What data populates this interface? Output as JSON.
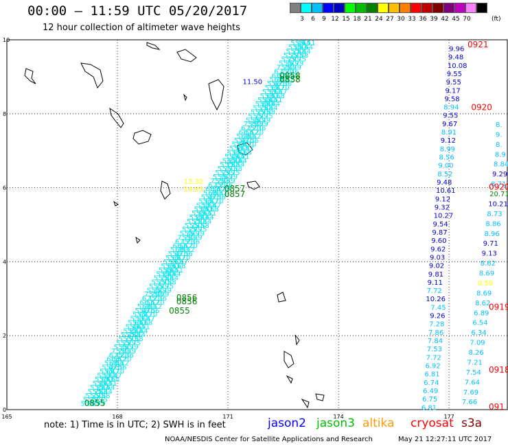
{
  "header": {
    "title": "00:00 – 11:59 UTC 05/20/2017",
    "subtitle": "12 hour collection of altimeter wave heights"
  },
  "scale": {
    "colors": [
      "#808080",
      "#00ffff",
      "#00bfff",
      "#0000ff",
      "#0000bf",
      "#00ff00",
      "#00bf00",
      "#008000",
      "#ffff00",
      "#ffbf00",
      "#ff8000",
      "#ff0000",
      "#bf0000",
      "#800000",
      "#800080",
      "#bf00bf",
      "#ff80ff",
      "#000000"
    ],
    "labels": [
      "3",
      "6",
      "9",
      "12",
      "15",
      "18",
      "21",
      "24",
      "27",
      "30",
      "33",
      "36",
      "39",
      "42",
      "45",
      "70"
    ],
    "unit": "(ft)"
  },
  "axes": {
    "x_ticks": [
      "165",
      "168",
      "171",
      "174",
      "177"
    ],
    "y_ticks": [
      "0",
      "2",
      "4",
      "6",
      "8",
      "10"
    ]
  },
  "jason3_track": {
    "color": "#00e5ee",
    "values": [
      "5.36",
      "5.79",
      "5.79",
      "5.75",
      "5.88",
      "5.44",
      "5.64",
      "5.51",
      "5.68",
      "5.47",
      "5.70",
      "6.56",
      "6.12",
      "7.20"
    ],
    "time_labels": [
      {
        "text": "0855",
        "lat": 0.1,
        "lon": 167.1,
        "color": "#007f00"
      },
      {
        "text": "0855",
        "lat": 2.6,
        "lon": 169.4,
        "color": "#007f00"
      },
      {
        "text": "0856",
        "lat": 2.85,
        "lon": 169.6,
        "color": "#007f00"
      },
      {
        "text": "0856",
        "lat": 2.95,
        "lon": 169.6,
        "color": "#007f00"
      },
      {
        "text": "0857",
        "lat": 5.75,
        "lon": 170.9,
        "color": "#007f00"
      },
      {
        "text": "0857",
        "lat": 5.9,
        "lon": 170.9,
        "color": "#007f00"
      },
      {
        "text": "0858",
        "lat": 8.85,
        "lon": 172.4,
        "color": "#007f00"
      },
      {
        "text": "0858",
        "lat": 8.95,
        "lon": 172.4,
        "color": "#007f00"
      }
    ],
    "extra_labels": [
      {
        "text": "14.93",
        "lat": 5.9,
        "lon": 169.8,
        "color": "#ffff00"
      },
      {
        "text": "13.32",
        "lat": 6.1,
        "lon": 169.8,
        "color": "#ffff00"
      },
      {
        "text": "11.50",
        "lat": 8.8,
        "lon": 171.4,
        "color": "#0000cc"
      }
    ]
  },
  "east_track1": {
    "values_top": [
      "9.96",
      "9.48",
      "10.08",
      "9.55",
      "9.55",
      "9.17",
      "9.58",
      "8.94",
      "9.55",
      "9.67",
      "8.91",
      "9.12",
      "8.99",
      "8.56",
      "9.00",
      "8.52",
      "9.48",
      "10.61",
      "9.12",
      "9.32",
      "10.27",
      "9.54",
      "9.87",
      "9.60",
      "9.62",
      "9.03",
      "9.02",
      "9.81",
      "9.11",
      "7.72",
      "10.26",
      "7.45",
      "9.26",
      "7.28",
      "7.86",
      "7.84",
      "7.53",
      "7.72",
      "6.92",
      "6.81",
      "6.74",
      "6.49",
      "6.75",
      "6.81"
    ],
    "colors_top": [
      "#0000cc",
      "#0000cc",
      "#0000cc",
      "#0000cc",
      "#0000cc",
      "#0000cc",
      "#0000cc",
      "#00bfff",
      "#0000cc",
      "#0000cc",
      "#00bfff",
      "#0000cc",
      "#00bfff",
      "#00bfff",
      "#00bfff",
      "#00bfff",
      "#0000cc",
      "#0000cc",
      "#0000cc",
      "#0000cc",
      "#0000cc",
      "#0000cc",
      "#0000cc",
      "#0000cc",
      "#0000cc",
      "#0000cc",
      "#0000cc",
      "#0000cc",
      "#0000cc",
      "#00bfff",
      "#0000cc",
      "#00bfff",
      "#0000cc",
      "#00bfff",
      "#00bfff",
      "#00bfff",
      "#00bfff",
      "#00bfff",
      "#00bfff",
      "#00bfff",
      "#00bfff",
      "#00bfff",
      "#00bfff",
      "#00bfff"
    ]
  },
  "east_track2": {
    "values": [
      "8.",
      "9.",
      "8.",
      "8.9",
      "8.84",
      "9.29",
      "8.71",
      "20.71",
      "10.21",
      "8.73",
      "8.86",
      "8.96",
      "9.71",
      "9.13",
      "8.62",
      "8.69",
      "8.59",
      "8.69",
      "8.62",
      "6.89",
      "6.54",
      "6.34",
      "7.09",
      "8.26",
      "7.21",
      "7.54",
      "7.64",
      "7.69",
      "7.66"
    ],
    "colors": [
      "#00bfff",
      "#00bfff",
      "#00bfff",
      "#00bfff",
      "#00bfff",
      "#0000cc",
      "#00bfff",
      "#007f00",
      "#0000cc",
      "#00bfff",
      "#00bfff",
      "#00bfff",
      "#0000cc",
      "#0000cc",
      "#00bfff",
      "#00bfff",
      "#ffff00",
      "#00bfff",
      "#00bfff",
      "#00bfff",
      "#00bfff",
      "#00bfff",
      "#00bfff",
      "#00bfff",
      "#00bfff",
      "#00bfff",
      "#00bfff",
      "#00bfff",
      "#00bfff"
    ]
  },
  "red_labels": [
    {
      "text": "0921",
      "lat": 9.8,
      "lon": 177.5
    },
    {
      "text": "0920",
      "lat": 8.1,
      "lon": 177.6
    },
    {
      "text": "0920",
      "lat": 5.95,
      "lon": 178.4
    },
    {
      "text": "0919",
      "lat": 2.7,
      "lon": 179.4
    },
    {
      "text": "0918",
      "lat": 1.0,
      "lon": 179.5
    },
    {
      "text": "091",
      "lat": 0.0,
      "lon": 179.6
    }
  ],
  "footer": {
    "note": "note: 1) Time is in UTC; 2) SWH is in feet",
    "legend": [
      {
        "label": "jason2",
        "color": "#0000ff"
      },
      {
        "label": "jason3",
        "color": "#00bf00"
      },
      {
        "label": "altika",
        "color": "#ff9900"
      },
      {
        "label": "cryosat",
        "color": "#ff0000"
      },
      {
        "label": "s3a",
        "color": "#800000"
      }
    ],
    "credit": "NOAA/NESDIS Center for Satellite Applications and Research",
    "timestamp": "May 21 12:27:11 UTC 2017"
  }
}
